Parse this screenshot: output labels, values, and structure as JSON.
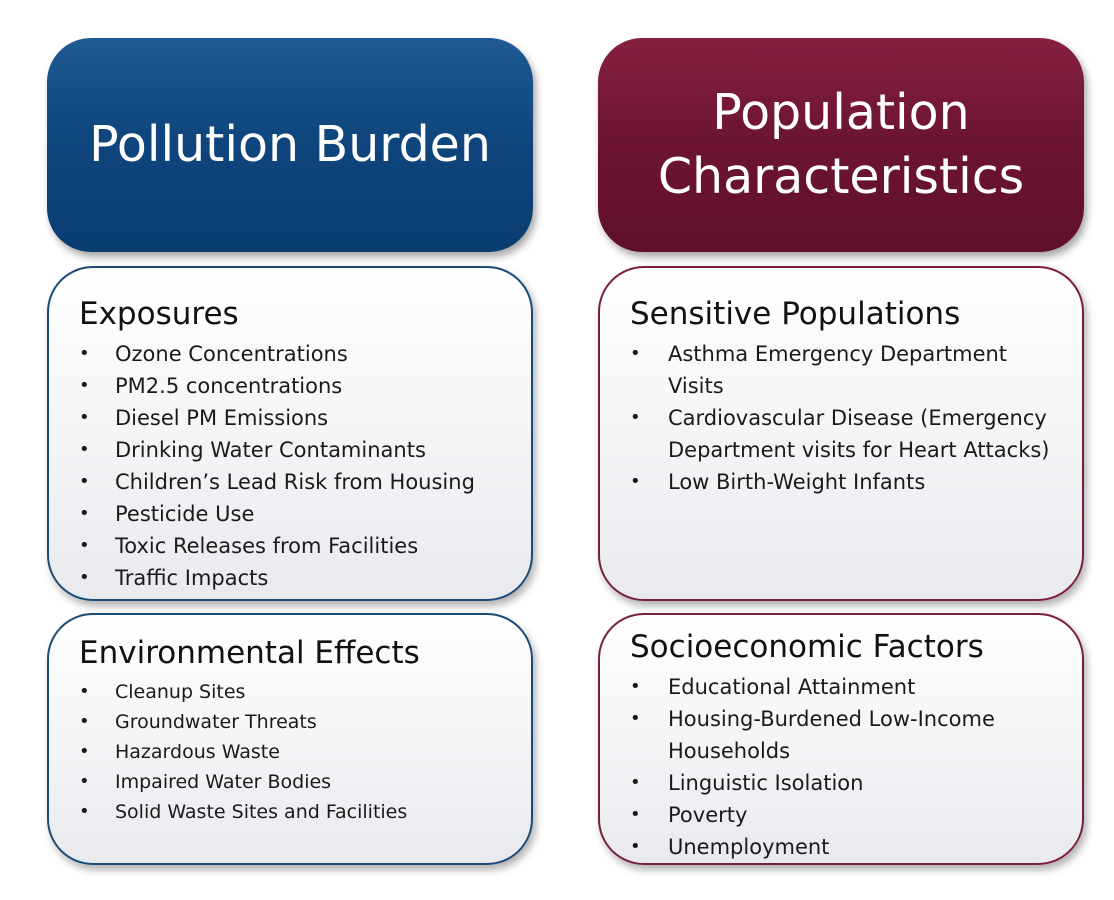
{
  "pollution_burden": {
    "title": "Pollution Burden",
    "color": "#0f467d",
    "exposures": {
      "title": "Exposures",
      "items": [
        "Ozone Concentrations",
        "PM2.5 concentrations",
        "Diesel PM Emissions",
        "Drinking Water Contaminants",
        "Children’s Lead Risk from Housing",
        "Pesticide Use",
        "Toxic Releases from Facilities",
        "Traffic Impacts"
      ]
    },
    "environmental_effects": {
      "title": "Environmental Effects",
      "items": [
        "Cleanup Sites",
        "Groundwater Threats",
        "Hazardous Waste",
        "Impaired Water Bodies",
        "Solid Waste Sites and Facilities"
      ]
    }
  },
  "population_characteristics": {
    "title": "Population\nCharacteristics",
    "color": "#6d1532",
    "sensitive_populations": {
      "title": "Sensitive Populations",
      "items": [
        "Asthma Emergency Department Visits",
        "Cardiovascular Disease (Emergency Department visits for Heart Attacks)",
        "Low Birth-Weight Infants"
      ]
    },
    "socioeconomic_factors": {
      "title": "Socioeconomic Factors",
      "items": [
        "Educational Attainment",
        "Housing-Burdened Low-Income Households",
        "Linguistic Isolation",
        "Poverty",
        "Unemployment"
      ]
    }
  }
}
